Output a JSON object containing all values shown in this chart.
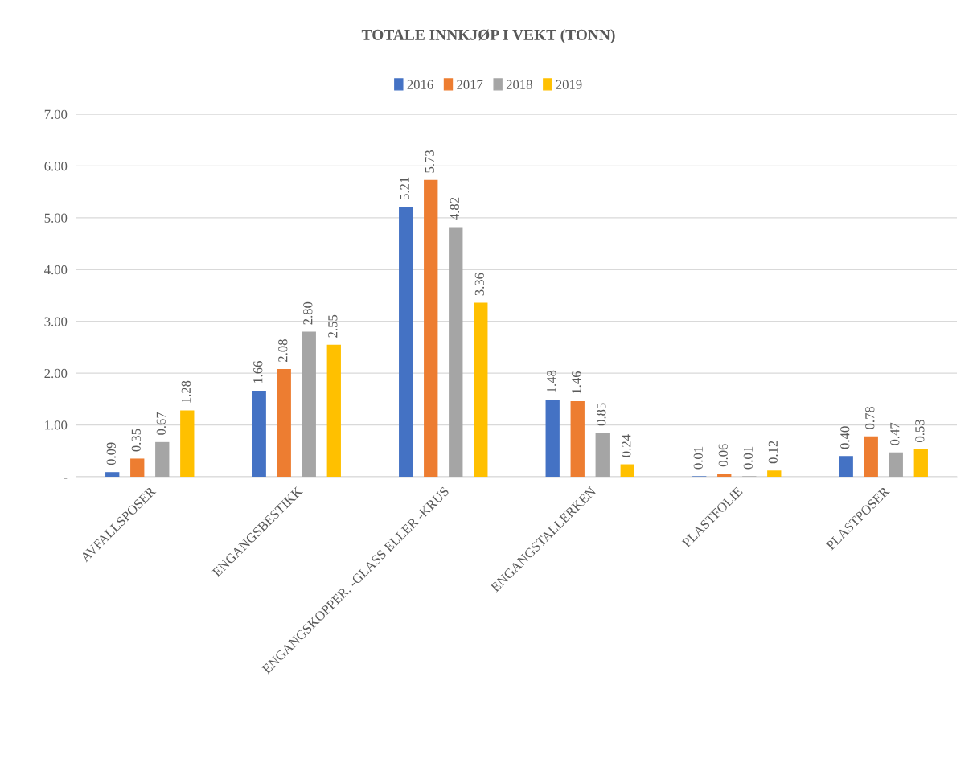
{
  "chart_data": {
    "type": "bar",
    "title": "TOTALE INNKJØP I VEKT (TONN)",
    "categories": [
      "AVFALLSPOSER",
      "ENGANGSBESTIKK",
      "ENGANGSKOPPER, -GLASS ELLER -KRUS",
      "ENGANGSTALLERKEN",
      "PLASTFOLIE",
      "PLASTPOSER"
    ],
    "series": [
      {
        "name": "2016",
        "color": "#4472c4",
        "values": [
          0.09,
          1.66,
          5.21,
          1.48,
          0.01,
          0.4
        ],
        "value_labels": [
          "0.09",
          "1.66",
          "5.21",
          "1.48",
          "0.01",
          "0.40"
        ]
      },
      {
        "name": "2017",
        "color": "#ed7d31",
        "values": [
          0.35,
          2.08,
          5.73,
          1.46,
          0.06,
          0.78
        ],
        "value_labels": [
          "0.35",
          "2.08",
          "5.73",
          "1.46",
          "0.06",
          "0.78"
        ]
      },
      {
        "name": "2018",
        "color": "#a5a5a5",
        "values": [
          0.67,
          2.8,
          4.82,
          0.85,
          0.01,
          0.47
        ],
        "value_labels": [
          "0.67",
          "2.80",
          "4.82",
          "0.85",
          "0.01",
          "0.47"
        ]
      },
      {
        "name": "2019",
        "color": "#ffc000",
        "values": [
          1.28,
          2.55,
          3.36,
          0.24,
          0.12,
          0.53
        ],
        "value_labels": [
          "1.28",
          "2.55",
          "3.36",
          "0.24",
          "0.12",
          "0.53"
        ]
      }
    ],
    "ylim": [
      0,
      7
    ],
    "yticks": [
      {
        "value": 0,
        "label": "-"
      },
      {
        "value": 1,
        "label": "1.00"
      },
      {
        "value": 2,
        "label": "2.00"
      },
      {
        "value": 3,
        "label": "3.00"
      },
      {
        "value": 4,
        "label": "4.00"
      },
      {
        "value": 5,
        "label": "5.00"
      },
      {
        "value": 6,
        "label": "6.00"
      },
      {
        "value": 7,
        "label": "7.00"
      }
    ],
    "grid": "y",
    "legend": "top"
  }
}
